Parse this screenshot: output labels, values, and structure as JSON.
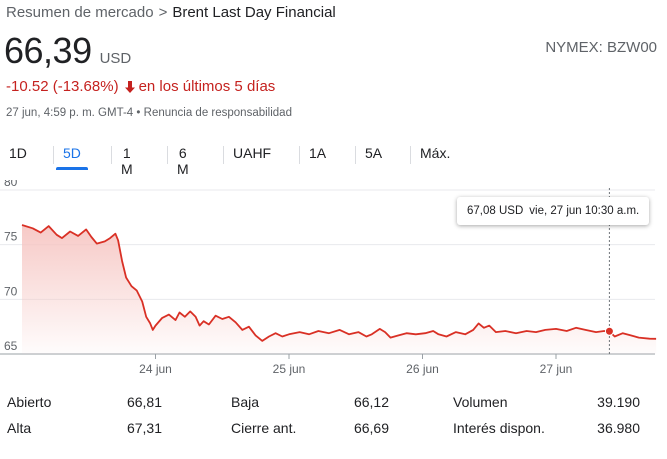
{
  "breadcrumb": {
    "parent": "Resumen de mercado",
    "separator": ">",
    "current": "Brent Last Day Financial"
  },
  "quote": {
    "price": "66,39",
    "currency": "USD",
    "ticker": "NYMEX: BZW00",
    "change": "-10.52 (-13.68%)",
    "change_period": "en los últimos 5 días",
    "timestamp": "27 jun, 4:59 p. m. GMT-4",
    "bullet": "•",
    "disclaimer": "Renuncia de responsabilidad"
  },
  "range_tabs": [
    {
      "label": "1D",
      "active": false
    },
    {
      "label": "5D",
      "active": true
    },
    {
      "label": "1 M",
      "active": false
    },
    {
      "label": "6 M",
      "active": false
    },
    {
      "label": "UAHF",
      "active": false
    },
    {
      "label": "1A",
      "active": false
    },
    {
      "label": "5A",
      "active": false
    },
    {
      "label": "Máx.",
      "active": false
    }
  ],
  "tooltip": {
    "price": "67,08 USD",
    "date": "vie, 27 jun 10:30 a.m."
  },
  "colors": {
    "line": "#d93025",
    "fill_top": "#f6c6c3",
    "grid": "#e8eaed",
    "axis_text": "#5f6368",
    "accent": "#1a73e8",
    "negative": "#c5221f"
  },
  "chart_data": {
    "type": "area",
    "ylim": [
      65,
      80
    ],
    "y_ticks": [
      "80",
      "75",
      "70",
      "65"
    ],
    "x_ticks": [
      "24 jun",
      "25 jun",
      "26 jun",
      "27 jun"
    ],
    "x_tick_positions_day": [
      1,
      2,
      3,
      4
    ],
    "x_range_day": [
      0,
      4.8
    ],
    "points": [
      [
        0.0,
        76.8
      ],
      [
        0.08,
        76.5
      ],
      [
        0.14,
        76.1
      ],
      [
        0.2,
        76.7
      ],
      [
        0.26,
        75.9
      ],
      [
        0.3,
        75.6
      ],
      [
        0.36,
        76.2
      ],
      [
        0.42,
        75.8
      ],
      [
        0.48,
        76.4
      ],
      [
        0.52,
        75.7
      ],
      [
        0.56,
        75.1
      ],
      [
        0.62,
        75.3
      ],
      [
        0.66,
        75.6
      ],
      [
        0.7,
        76.0
      ],
      [
        0.72,
        75.4
      ],
      [
        0.75,
        73.5
      ],
      [
        0.78,
        72.0
      ],
      [
        0.82,
        71.2
      ],
      [
        0.86,
        70.8
      ],
      [
        0.9,
        69.8
      ],
      [
        0.93,
        68.4
      ],
      [
        0.96,
        67.8
      ],
      [
        0.98,
        67.2
      ],
      [
        1.0,
        67.6
      ],
      [
        1.05,
        68.3
      ],
      [
        1.1,
        68.6
      ],
      [
        1.15,
        68.1
      ],
      [
        1.18,
        68.8
      ],
      [
        1.22,
        68.4
      ],
      [
        1.26,
        68.9
      ],
      [
        1.3,
        68.4
      ],
      [
        1.33,
        67.6
      ],
      [
        1.36,
        68.0
      ],
      [
        1.4,
        67.7
      ],
      [
        1.45,
        68.5
      ],
      [
        1.5,
        68.2
      ],
      [
        1.55,
        68.4
      ],
      [
        1.6,
        67.9
      ],
      [
        1.65,
        67.2
      ],
      [
        1.7,
        67.5
      ],
      [
        1.75,
        66.7
      ],
      [
        1.8,
        66.2
      ],
      [
        1.85,
        66.6
      ],
      [
        1.9,
        66.9
      ],
      [
        1.95,
        66.6
      ],
      [
        2.0,
        66.8
      ],
      [
        2.08,
        67.0
      ],
      [
        2.15,
        66.8
      ],
      [
        2.22,
        67.1
      ],
      [
        2.3,
        66.9
      ],
      [
        2.38,
        67.2
      ],
      [
        2.45,
        66.8
      ],
      [
        2.52,
        67.0
      ],
      [
        2.58,
        66.6
      ],
      [
        2.62,
        66.8
      ],
      [
        2.68,
        67.3
      ],
      [
        2.72,
        67.0
      ],
      [
        2.76,
        66.5
      ],
      [
        2.82,
        66.7
      ],
      [
        2.88,
        66.9
      ],
      [
        2.95,
        66.8
      ],
      [
        3.02,
        66.9
      ],
      [
        3.08,
        67.1
      ],
      [
        3.12,
        66.8
      ],
      [
        3.18,
        66.6
      ],
      [
        3.25,
        67.0
      ],
      [
        3.32,
        66.8
      ],
      [
        3.38,
        67.2
      ],
      [
        3.42,
        67.8
      ],
      [
        3.46,
        67.4
      ],
      [
        3.5,
        67.6
      ],
      [
        3.55,
        67.0
      ],
      [
        3.62,
        67.1
      ],
      [
        3.7,
        66.9
      ],
      [
        3.78,
        67.1
      ],
      [
        3.85,
        67.0
      ],
      [
        3.92,
        67.2
      ],
      [
        4.0,
        67.3
      ],
      [
        4.08,
        67.1
      ],
      [
        4.15,
        67.4
      ],
      [
        4.22,
        67.2
      ],
      [
        4.3,
        67.0
      ],
      [
        4.36,
        67.1
      ],
      [
        4.4,
        67.08
      ],
      [
        4.44,
        66.6
      ],
      [
        4.5,
        66.9
      ],
      [
        4.56,
        66.7
      ],
      [
        4.62,
        66.5
      ],
      [
        4.7,
        66.4
      ],
      [
        4.75,
        66.39
      ]
    ],
    "highlight": {
      "x": 4.4,
      "y": 67.08
    }
  },
  "stats": [
    {
      "label": "Abierto",
      "value": "66,81"
    },
    {
      "label": "Alta",
      "value": "67,31"
    },
    {
      "label": "Baja",
      "value": "66,12"
    },
    {
      "label": "Cierre ant.",
      "value": "66,69"
    },
    {
      "label": "Volumen",
      "value": "39.190"
    },
    {
      "label": "Interés dispon.",
      "value": "36.980"
    }
  ]
}
